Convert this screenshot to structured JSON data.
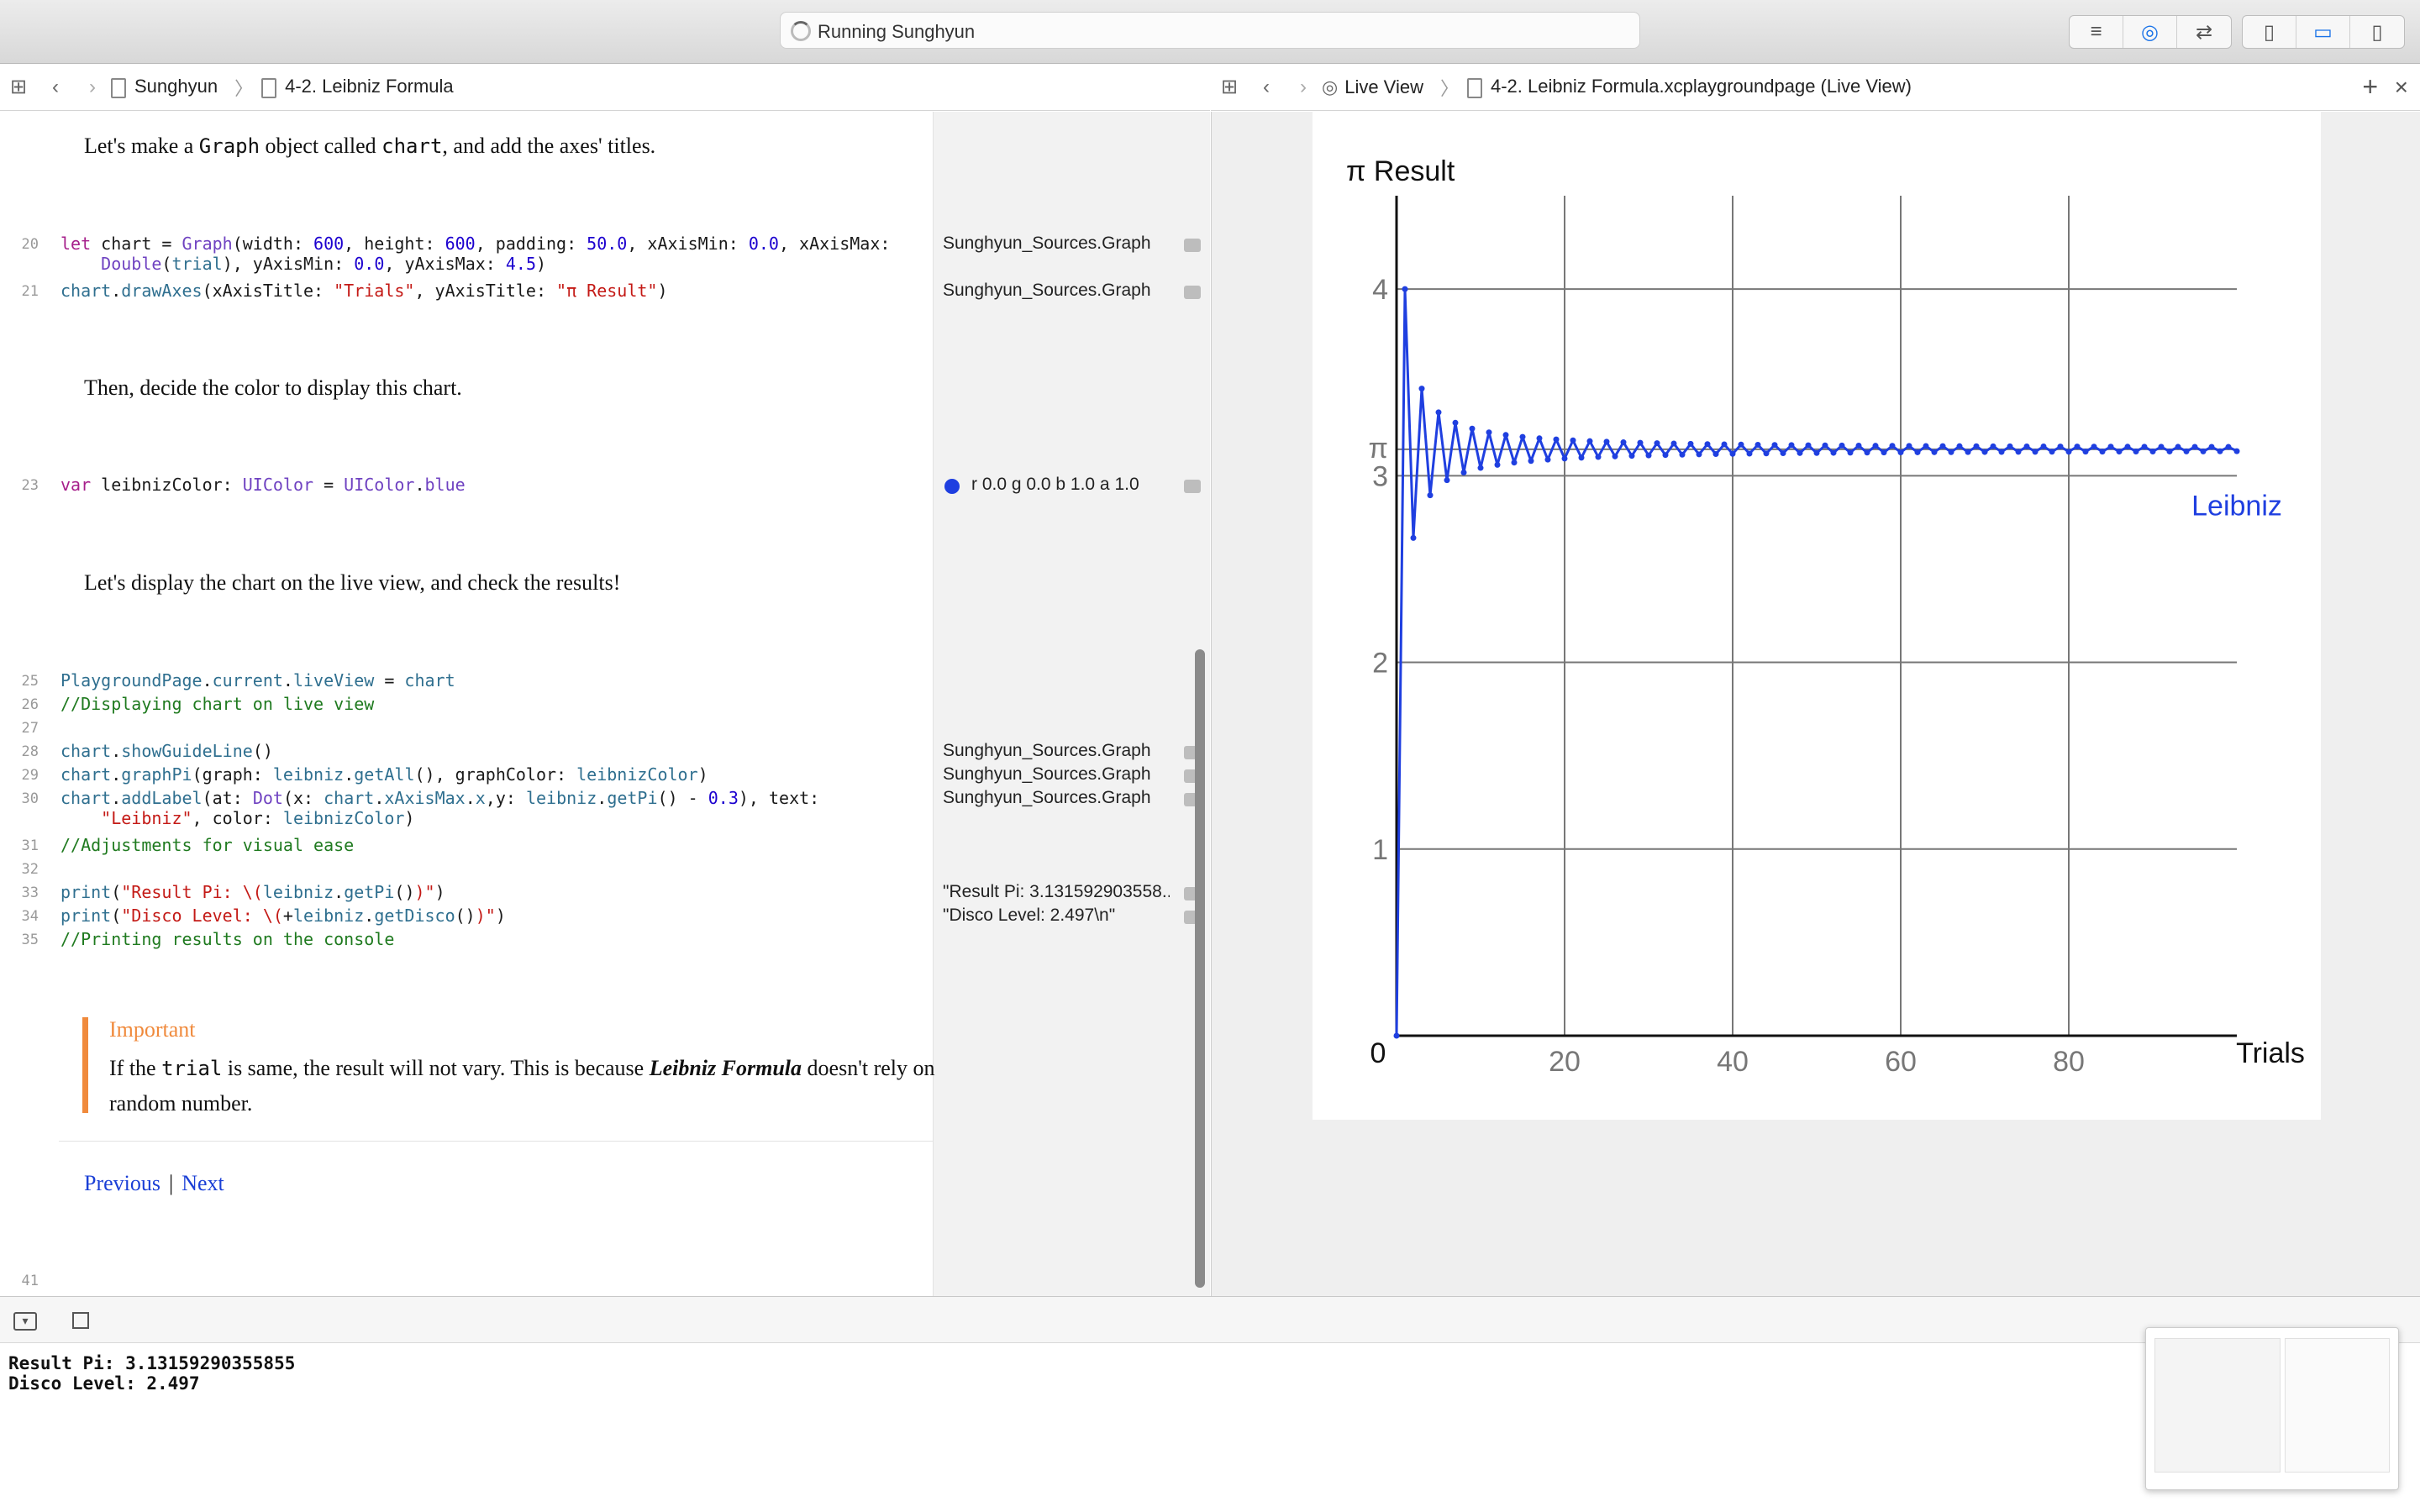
{
  "toolbar": {
    "activity_text": "Running Sunghyun",
    "editor_buttons": [
      "lines-icon",
      "assistant-icon",
      "version-icon"
    ],
    "view_buttons": [
      "left-panel-icon",
      "bottom-panel-icon",
      "right-panel-icon"
    ]
  },
  "left_jumpbar": {
    "project": "Sunghyun",
    "page": "4-2. Leibniz Formula"
  },
  "right_jumpbar": {
    "mode": "Live View",
    "file": "4-2. Leibniz Formula.xcplaygroundpage (Live View)"
  },
  "prose": {
    "p1_a": "Let's make a ",
    "p1_graph": "Graph",
    "p1_b": " object called ",
    "p1_chart": "chart",
    "p1_c": ", and add the axes' titles.",
    "p2": "Then, decide the color to display this chart.",
    "p3": "Let's display the chart on the live view, and check the results!"
  },
  "line_numbers": {
    "l20": "20",
    "l21": "21",
    "l23": "23",
    "l25": "25",
    "l26": "26",
    "l27": "27",
    "l28": "28",
    "l29": "29",
    "l30": "30",
    "l31": "31",
    "l32": "32",
    "l33": "33",
    "l34": "34",
    "l35": "35",
    "l41": "41"
  },
  "results": {
    "r20": "Sunghyun_Sources.Graph",
    "r21": "Sunghyun_Sources.Graph",
    "r23": "r 0.0 g 0.0 b 1.0 a 1.0",
    "r28": "Sunghyun_Sources.Graph",
    "r29": "Sunghyun_Sources.Graph",
    "r30": "Sunghyun_Sources.Graph",
    "r33": "\"Result Pi: 3.131592903558...",
    "r34": "\"Disco Level: 2.497\\n\""
  },
  "callout": {
    "title": "Important",
    "text_a": "If the ",
    "text_trial": "trial",
    "text_b": " is same, the result will not vary. This is because ",
    "text_bold": "Leibniz Formula",
    "text_c": " doesn't rely on random number."
  },
  "nav": {
    "previous": "Previous",
    "separator": "|",
    "next": "Next"
  },
  "console": {
    "line1": "Result Pi: 3.13159290355855",
    "line2": "Disco Level: 2.497"
  },
  "colors": {
    "series": "#1f3fe0",
    "callout_accent": "#f08a3c",
    "link": "#1a3fd6"
  },
  "chart_data": {
    "type": "line",
    "ylabel": "π Result",
    "xlabel": "Trials",
    "xlim": [
      0,
      100
    ],
    "ylim": [
      0,
      4.5
    ],
    "x_ticks": [
      "20",
      "40",
      "60",
      "80"
    ],
    "y_ticks": [
      "1",
      "2",
      "3",
      "4"
    ],
    "origin_label": "0",
    "pi_label": "π",
    "label_text": "Leibniz",
    "label_at": {
      "x": 100,
      "y": 2.8416
    },
    "pi_value": 3.14159,
    "series": [
      {
        "name": "Leibniz",
        "x": [
          0,
          1,
          2,
          3,
          4,
          5,
          6,
          7,
          8,
          9,
          10,
          11,
          12,
          13,
          14,
          15,
          16,
          17,
          18,
          19,
          20,
          21,
          22,
          23,
          24,
          25,
          26,
          27,
          28,
          29,
          30,
          31,
          32,
          33,
          34,
          35,
          36,
          37,
          38,
          39,
          40,
          41,
          42,
          43,
          44,
          45,
          46,
          47,
          48,
          49,
          50,
          51,
          52,
          53,
          54,
          55,
          56,
          57,
          58,
          59,
          60,
          61,
          62,
          63,
          64,
          65,
          66,
          67,
          68,
          69,
          70,
          71,
          72,
          73,
          74,
          75,
          76,
          77,
          78,
          79,
          80,
          81,
          82,
          83,
          84,
          85,
          86,
          87,
          88,
          89,
          90,
          91,
          92,
          93,
          94,
          95,
          96,
          97,
          98,
          99,
          100
        ],
        "y": [
          0,
          4.0,
          2.6667,
          3.4667,
          2.8952,
          3.3397,
          2.976,
          3.2837,
          3.0171,
          3.2524,
          3.0418,
          3.2323,
          3.0584,
          3.2184,
          3.0703,
          3.2082,
          3.0792,
          3.2004,
          3.0862,
          3.1943,
          3.0918,
          3.1893,
          3.0964,
          3.1852,
          3.1003,
          3.1819,
          3.1035,
          3.179,
          3.1063,
          3.1765,
          3.1088,
          3.1743,
          3.1109,
          3.1725,
          3.1128,
          3.1708,
          3.1145,
          3.1693,
          3.116,
          3.168,
          3.1173,
          3.1668,
          3.1185,
          3.1657,
          3.1196,
          3.1648,
          3.1206,
          3.1639,
          3.1215,
          3.1631,
          3.1216,
          3.1624,
          3.1227,
          3.1617,
          3.1234,
          3.1611,
          3.124,
          3.1605,
          3.1245,
          3.16,
          3.125,
          3.1595,
          3.1255,
          3.159,
          3.126,
          3.1586,
          3.1264,
          3.1582,
          3.1268,
          3.1578,
          3.1272,
          3.1575,
          3.1275,
          3.1572,
          3.1278,
          3.1569,
          3.1281,
          3.1566,
          3.1284,
          3.1563,
          3.1287,
          3.1561,
          3.129,
          3.1558,
          3.1292,
          3.1556,
          3.1294,
          3.1554,
          3.1296,
          3.1552,
          3.1298,
          3.155,
          3.13,
          3.1548,
          3.1302,
          3.1546,
          3.1304,
          3.1545,
          3.1306,
          3.1543,
          3.1316
        ]
      }
    ]
  }
}
